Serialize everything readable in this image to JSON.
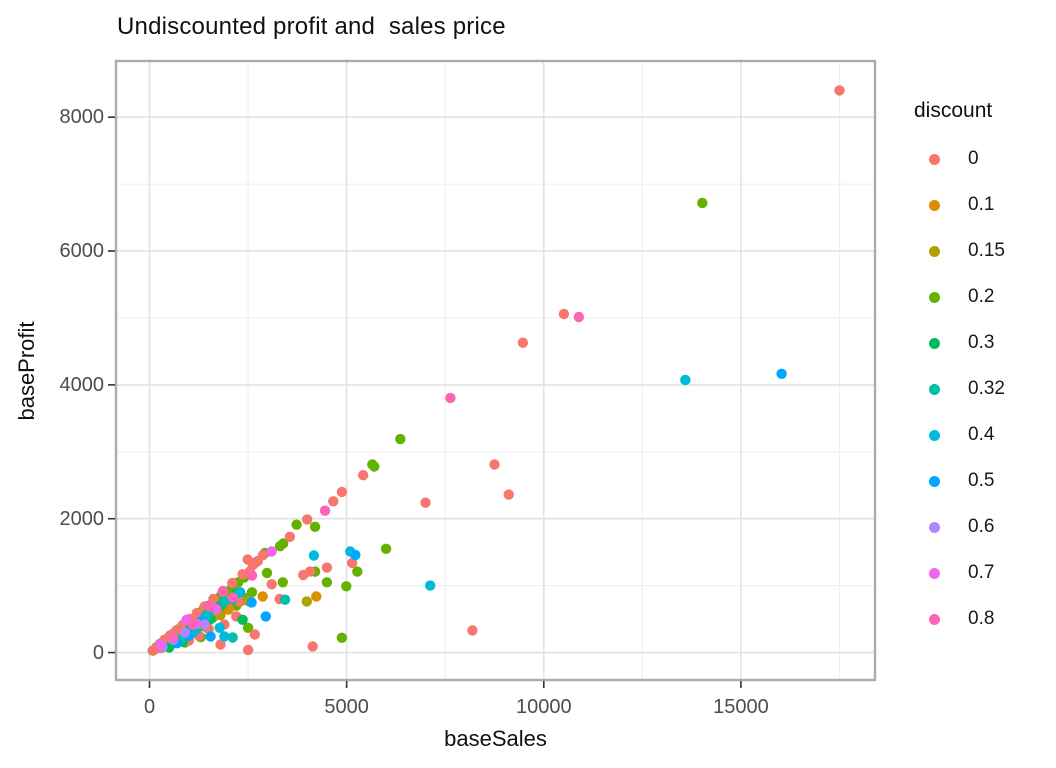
{
  "chart_data": {
    "type": "scatter",
    "title": "Undiscounted profit and  sales price",
    "xlabel": "baseSales",
    "ylabel": "baseProfit",
    "legend_title": "discount",
    "legend_position": "right",
    "grid": true,
    "x_ticks": [
      0,
      5000,
      10000,
      15000
    ],
    "x_minor_ticks": [
      2500,
      7500,
      12500,
      17500
    ],
    "y_ticks": [
      0,
      2000,
      4000,
      6000,
      8000
    ],
    "y_minor_ticks": [
      1000,
      3000,
      5000,
      7000
    ],
    "x_domain": [
      -850,
      18400
    ],
    "y_domain": [
      -410,
      8840
    ],
    "colors": {
      "panel_border": "#ababab",
      "major_grid": "#e2e2e2",
      "minor_grid": "#efefef",
      "tick_mark": "#333333",
      "tick_text": "#4d4d4d"
    },
    "legend_entries": [
      {
        "value": "0",
        "color": "#F8766D"
      },
      {
        "value": "0.1",
        "color": "#DB8E00"
      },
      {
        "value": "0.15",
        "color": "#AEA200"
      },
      {
        "value": "0.2",
        "color": "#64B200"
      },
      {
        "value": "0.3",
        "color": "#00BD5C"
      },
      {
        "value": "0.32",
        "color": "#00C1A7"
      },
      {
        "value": "0.4",
        "color": "#00BADE"
      },
      {
        "value": "0.5",
        "color": "#00A6FF"
      },
      {
        "value": "0.6",
        "color": "#B385FF"
      },
      {
        "value": "0.7",
        "color": "#EF67EB"
      },
      {
        "value": "0.8",
        "color": "#FF63B6"
      }
    ],
    "point_columns": [
      "baseSales",
      "baseProfit",
      "discount"
    ],
    "points": [
      [
        300,
        140,
        "0.2"
      ],
      [
        450,
        210,
        "0.2"
      ],
      [
        600,
        280,
        "0.2"
      ],
      [
        750,
        350,
        "0.2"
      ],
      [
        900,
        420,
        "0.2"
      ],
      [
        1050,
        490,
        "0.2"
      ],
      [
        1200,
        560,
        "0.2"
      ],
      [
        1350,
        630,
        "0.2"
      ],
      [
        1500,
        700,
        "0.2"
      ],
      [
        1650,
        770,
        "0.2"
      ],
      [
        1800,
        840,
        "0.2"
      ],
      [
        1950,
        910,
        "0.2"
      ],
      [
        2100,
        980,
        "0.2"
      ],
      [
        2250,
        1050,
        "0.2"
      ],
      [
        2400,
        1120,
        "0.2"
      ],
      [
        800,
        250,
        "0.2"
      ],
      [
        1200,
        420,
        "0.2"
      ],
      [
        1600,
        520,
        "0.2"
      ],
      [
        2000,
        680,
        "0.2"
      ],
      [
        2400,
        820,
        "0.2"
      ],
      [
        1000,
        290,
        "0.2"
      ],
      [
        1400,
        390,
        "0.2"
      ],
      [
        1800,
        600,
        "0.2"
      ],
      [
        2200,
        700,
        "0.2"
      ],
      [
        2600,
        900,
        "0.2"
      ],
      [
        900,
        150,
        "0.2"
      ],
      [
        1300,
        230,
        "0.2"
      ],
      [
        2500,
        370,
        "0.2"
      ],
      [
        170,
        75,
        "0.2"
      ],
      [
        80,
        30,
        "0.2"
      ],
      [
        2670,
        1340,
        "0.2"
      ],
      [
        2930,
        1490,
        "0.2"
      ],
      [
        2980,
        1190,
        "0.2"
      ],
      [
        3310,
        1590,
        "0.2"
      ],
      [
        3380,
        1050,
        "0.2"
      ],
      [
        3390,
        1630,
        "0.2"
      ],
      [
        3730,
        1910,
        "0.2"
      ],
      [
        4200,
        1880,
        "0.2"
      ],
      [
        4200,
        1210,
        "0.2"
      ],
      [
        4500,
        1050,
        "0.2"
      ],
      [
        4880,
        220,
        "0.2"
      ],
      [
        4990,
        990,
        "0.2"
      ],
      [
        5270,
        1210,
        "0.2"
      ],
      [
        5650,
        2810,
        "0.2"
      ],
      [
        5700,
        2780,
        "0.2"
      ],
      [
        6000,
        1550,
        "0.2"
      ],
      [
        6360,
        3190,
        "0.2"
      ],
      [
        14020,
        6720,
        "0.2"
      ],
      [
        17500,
        8400,
        "0"
      ],
      [
        10510,
        5060,
        "0"
      ],
      [
        9470,
        4630,
        "0"
      ],
      [
        9110,
        2360,
        "0"
      ],
      [
        8750,
        2810,
        "0"
      ],
      [
        8190,
        330,
        "0"
      ],
      [
        7000,
        2240,
        "0"
      ],
      [
        5420,
        2650,
        "0"
      ],
      [
        5140,
        1340,
        "0"
      ],
      [
        4880,
        2400,
        "0"
      ],
      [
        4660,
        2260,
        "0"
      ],
      [
        4500,
        1270,
        "0"
      ],
      [
        4140,
        90,
        "0"
      ],
      [
        4070,
        1210,
        "0"
      ],
      [
        4000,
        1990,
        "0"
      ],
      [
        3900,
        1160,
        "0"
      ],
      [
        3560,
        1730,
        "0"
      ],
      [
        2880,
        1460,
        "0"
      ],
      [
        2670,
        270,
        "0"
      ],
      [
        2620,
        1310,
        "0"
      ],
      [
        2540,
        1210,
        "0"
      ],
      [
        2490,
        1390,
        "0"
      ],
      [
        260,
        130,
        "0"
      ],
      [
        380,
        190,
        "0"
      ],
      [
        520,
        255,
        "0"
      ],
      [
        680,
        330,
        "0"
      ],
      [
        840,
        410,
        "0"
      ],
      [
        1020,
        500,
        "0"
      ],
      [
        1200,
        590,
        "0"
      ],
      [
        1400,
        690,
        "0"
      ],
      [
        1620,
        800,
        "0"
      ],
      [
        1860,
        920,
        "0"
      ],
      [
        2100,
        1040,
        "0"
      ],
      [
        2360,
        1170,
        "0"
      ],
      [
        700,
        200,
        "0"
      ],
      [
        900,
        320,
        "0"
      ],
      [
        1100,
        380,
        "0"
      ],
      [
        1400,
        480,
        "0"
      ],
      [
        1700,
        560,
        "0"
      ],
      [
        2000,
        660,
        "0"
      ],
      [
        2300,
        760,
        "0"
      ],
      [
        1000,
        180,
        "0"
      ],
      [
        1500,
        350,
        "0"
      ],
      [
        1900,
        420,
        "0"
      ],
      [
        2200,
        540,
        "0"
      ],
      [
        1800,
        120,
        "0"
      ],
      [
        1250,
        250,
        "0"
      ],
      [
        2500,
        40,
        "0"
      ],
      [
        600,
        140,
        "0"
      ],
      [
        450,
        100,
        "0"
      ],
      [
        300,
        70,
        "0"
      ],
      [
        150,
        55,
        "0"
      ],
      [
        90,
        30,
        "0"
      ],
      [
        2750,
        1370,
        "0"
      ],
      [
        3100,
        1020,
        "0"
      ],
      [
        3300,
        800,
        "0"
      ],
      [
        4230,
        840,
        "0.1"
      ],
      [
        2870,
        840,
        "0.1"
      ],
      [
        2000,
        640,
        "0.1"
      ],
      [
        1500,
        480,
        "0.1"
      ],
      [
        1200,
        380,
        "0.1"
      ],
      [
        900,
        280,
        "0.1"
      ],
      [
        3990,
        765,
        "0.15"
      ],
      [
        2500,
        770,
        "0.15"
      ],
      [
        1800,
        560,
        "0.15"
      ],
      [
        1400,
        430,
        "0.15"
      ],
      [
        1100,
        340,
        "0.15"
      ],
      [
        700,
        210,
        "0.15"
      ],
      [
        2360,
        490,
        "0.3"
      ],
      [
        2200,
        880,
        "0.3"
      ],
      [
        1800,
        700,
        "0.3"
      ],
      [
        1550,
        500,
        "0.3"
      ],
      [
        1300,
        420,
        "0.3"
      ],
      [
        1000,
        330,
        "0.3"
      ],
      [
        840,
        165,
        "0.3"
      ],
      [
        600,
        220,
        "0.3"
      ],
      [
        500,
        75,
        "0.3"
      ],
      [
        3440,
        790,
        "0.32"
      ],
      [
        2110,
        225,
        "0.32"
      ],
      [
        1900,
        760,
        "0.32"
      ],
      [
        1500,
        600,
        "0.32"
      ],
      [
        1200,
        350,
        "0.32"
      ],
      [
        800,
        200,
        "0.32"
      ],
      [
        13590,
        4075,
        "0.4"
      ],
      [
        7120,
        1000,
        "0.4"
      ],
      [
        5090,
        1510,
        "0.4"
      ],
      [
        4170,
        1450,
        "0.4"
      ],
      [
        2300,
        900,
        "0.4"
      ],
      [
        1900,
        240,
        "0.4"
      ],
      [
        1780,
        370,
        "0.4"
      ],
      [
        1400,
        520,
        "0.4"
      ],
      [
        1100,
        300,
        "0.4"
      ],
      [
        16030,
        4165,
        "0.5"
      ],
      [
        5220,
        1460,
        "0.5"
      ],
      [
        2950,
        540,
        "0.5"
      ],
      [
        2590,
        750,
        "0.5"
      ],
      [
        2100,
        800,
        "0.5"
      ],
      [
        1550,
        240,
        "0.5"
      ],
      [
        1300,
        460,
        "0.5"
      ],
      [
        1000,
        250,
        "0.5"
      ],
      [
        700,
        140,
        "0.5"
      ],
      [
        1400,
        420,
        "0.6"
      ],
      [
        900,
        300,
        "0.6"
      ],
      [
        600,
        190,
        "0.6"
      ],
      [
        330,
        90,
        "0.6"
      ],
      [
        3100,
        1510,
        "0.7"
      ],
      [
        1700,
        650,
        "0.7"
      ],
      [
        1200,
        430,
        "0.7"
      ],
      [
        940,
        490,
        "0.7"
      ],
      [
        280,
        120,
        "0.7"
      ],
      [
        10890,
        5015,
        "0.8"
      ],
      [
        7630,
        3805,
        "0.8"
      ],
      [
        4450,
        2120,
        "0.8"
      ],
      [
        2600,
        1150,
        "0.8"
      ],
      [
        2110,
        820,
        "0.8"
      ],
      [
        1860,
        910,
        "0.8"
      ],
      [
        1520,
        690,
        "0.8"
      ],
      [
        1100,
        420,
        "0.8"
      ],
      [
        600,
        230,
        "0.8"
      ]
    ]
  }
}
